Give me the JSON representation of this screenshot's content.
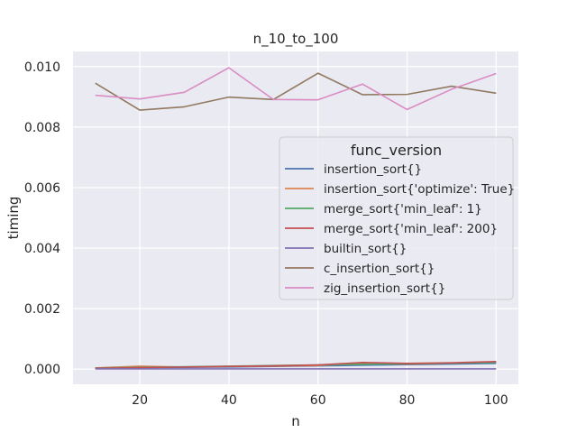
{
  "chart_data": {
    "type": "line",
    "title": "n_10_to_100",
    "xlabel": "n",
    "ylabel": "timing",
    "x": [
      10,
      20,
      30,
      40,
      50,
      60,
      70,
      80,
      90,
      100
    ],
    "xlim": [
      5,
      105
    ],
    "ylim": [
      -0.0005,
      0.0105
    ],
    "xticks": [
      20,
      40,
      60,
      80,
      100
    ],
    "xtick_labels": [
      "20",
      "40",
      "60",
      "80",
      "100"
    ],
    "yticks": [
      0.0,
      0.002,
      0.004,
      0.006,
      0.008,
      0.01
    ],
    "ytick_labels": [
      "0.000",
      "0.002",
      "0.004",
      "0.006",
      "0.008",
      "0.010"
    ],
    "grid": true,
    "legend": {
      "title": "func_version",
      "placement": "center-right"
    },
    "series": [
      {
        "name": "insertion_sort{}",
        "color": "#4c72b0",
        "values": [
          4e-05,
          5e-05,
          6e-05,
          7e-05,
          9e-05,
          0.00011,
          0.00013,
          0.00015,
          0.00017,
          0.00019
        ]
      },
      {
        "name": "insertion_sort{'optimize': True}",
        "color": "#dd8452",
        "values": [
          4e-05,
          0.0001,
          7e-05,
          9e-05,
          0.0001,
          0.00012,
          0.00019,
          0.00017,
          0.0002,
          0.00024
        ]
      },
      {
        "name": "merge_sort{'min_leaf': 1}",
        "color": "#55a868",
        "values": [
          4e-05,
          6e-05,
          8e-05,
          0.0001,
          0.00012,
          0.00014,
          0.00016,
          0.00018,
          0.0002,
          0.00022
        ]
      },
      {
        "name": "merge_sort{'min_leaf': 200}",
        "color": "#c44e52",
        "values": [
          3e-05,
          5e-05,
          7e-05,
          9e-05,
          0.00011,
          0.00014,
          0.00022,
          0.00019,
          0.00021,
          0.00025
        ]
      },
      {
        "name": "builtin_sort{}",
        "color": "#8172b3",
        "values": [
          1e-05,
          1e-05,
          1e-05,
          1e-05,
          1e-05,
          1e-05,
          1e-05,
          1e-05,
          1e-05,
          1e-05
        ]
      },
      {
        "name": "c_insertion_sort{}",
        "color": "#937860",
        "values": [
          0.00945,
          0.00856,
          0.00867,
          0.00899,
          0.00891,
          0.00978,
          0.00907,
          0.00908,
          0.00935,
          0.00912
        ]
      },
      {
        "name": "zig_insertion_sort{}",
        "color": "#da8bc3",
        "values": [
          0.00905,
          0.00893,
          0.00915,
          0.00996,
          0.00891,
          0.0089,
          0.00942,
          0.00858,
          0.00925,
          0.00977
        ]
      }
    ]
  }
}
